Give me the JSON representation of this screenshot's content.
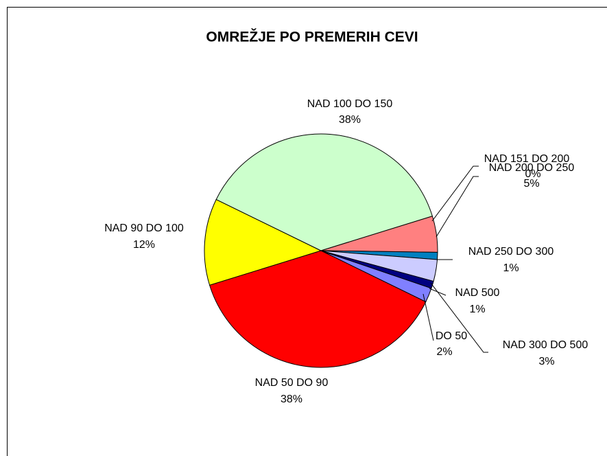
{
  "chart_data": {
    "type": "pie",
    "title": "OMREŽJE PO PREMERIH CEVI",
    "categories": [
      "DO 50",
      "NAD 50 DO 90",
      "NAD 90 DO 100",
      "NAD 100 DO 150",
      "NAD 151 DO 200",
      "NAD 200 DO 250",
      "NAD 250 DO 300",
      "NAD 300 DO 500",
      "NAD 500"
    ],
    "values": [
      2,
      38,
      12,
      38,
      0,
      5,
      1,
      3,
      1
    ],
    "value_labels": [
      "2%",
      "38%",
      "12%",
      "38%",
      "0%",
      "5%",
      "1%",
      "3%",
      "1%"
    ],
    "colors": [
      "#8080ff",
      "#ff0000",
      "#ffff00",
      "#ccffcc",
      "#993366",
      "#ff8080",
      "#0080c0",
      "#ccccff",
      "#000080"
    ]
  }
}
